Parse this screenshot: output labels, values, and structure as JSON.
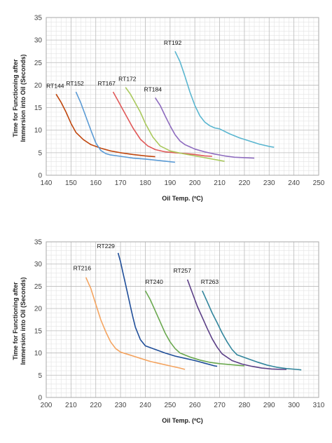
{
  "chart_data": [
    {
      "type": "line",
      "xlabel": "Oil Temp. (ºC)",
      "ylabel": "Time for Functioning after Immersion into Oil (Seconds)",
      "xlim": [
        140,
        250
      ],
      "ylim": [
        0,
        35
      ],
      "xticks": [
        "140",
        "150",
        "160",
        "170",
        "180",
        "190",
        "200",
        "210",
        "220",
        "230",
        "240",
        "250"
      ],
      "yticks": [
        "0",
        "5",
        "10",
        "15",
        "20",
        "25",
        "30",
        "35"
      ],
      "grid": true,
      "series": [
        {
          "name": "RT144",
          "color": "#c0470e",
          "x": [
            144,
            146,
            148,
            150,
            152,
            155,
            158,
            162,
            166,
            170,
            175,
            180,
            184
          ],
          "y": [
            18,
            16.2,
            14,
            11.5,
            9.5,
            7.9,
            6.8,
            6,
            5.4,
            5,
            4.6,
            4.3,
            4.1
          ]
        },
        {
          "name": "RT152",
          "color": "#5b9bd5",
          "x": [
            152,
            154,
            156,
            158,
            160,
            162,
            164,
            166,
            170,
            175,
            180,
            185,
            190,
            192
          ],
          "y": [
            18.5,
            16,
            13,
            10,
            7.2,
            5.5,
            4.8,
            4.5,
            4.2,
            3.8,
            3.6,
            3.3,
            3,
            2.9
          ]
        },
        {
          "name": "RT167",
          "color": "#e05858",
          "x": [
            167,
            169,
            171,
            173,
            175,
            178,
            181,
            184,
            188,
            192,
            196,
            200,
            204,
            207
          ],
          "y": [
            18.5,
            16.5,
            14.5,
            12.5,
            10.5,
            8,
            6.5,
            5.7,
            5.2,
            5,
            4.8,
            4.6,
            4.3,
            4.2
          ]
        },
        {
          "name": "RT172",
          "color": "#a9c95c",
          "x": [
            172,
            174,
            176,
            178,
            180,
            183,
            186,
            190,
            195,
            200,
            205,
            210,
            212
          ],
          "y": [
            19.5,
            18,
            16,
            14,
            11.5,
            8.5,
            6.5,
            5.4,
            4.8,
            4.3,
            3.8,
            3.3,
            3.1
          ]
        },
        {
          "name": "RT184",
          "color": "#8e6cbf",
          "x": [
            184,
            186,
            188,
            190,
            192,
            194,
            196,
            198,
            200,
            204,
            208,
            212,
            216,
            220,
            224
          ],
          "y": [
            17.2,
            15.5,
            13.2,
            11,
            9,
            7.6,
            6.8,
            6.3,
            5.8,
            5.2,
            4.7,
            4.3,
            4,
            3.9,
            3.8
          ]
        },
        {
          "name": "RT192",
          "color": "#5ab6d0",
          "x": [
            192,
            194,
            196,
            198,
            200,
            202,
            204,
            206,
            208,
            210,
            214,
            218,
            222,
            226,
            230,
            232
          ],
          "y": [
            27.5,
            25.2,
            22,
            18.5,
            15.5,
            13.2,
            11.8,
            11,
            10.5,
            10.3,
            9.2,
            8.3,
            7.6,
            6.9,
            6.4,
            6.2
          ]
        }
      ]
    },
    {
      "type": "line",
      "xlabel": "Oil Temp. (ºC)",
      "ylabel": "Time for Functioning after Immersion into Oil (Seconds)",
      "xlim": [
        200,
        310
      ],
      "ylim": [
        0,
        35
      ],
      "xticks": [
        "200",
        "210",
        "220",
        "230",
        "240",
        "250",
        "260",
        "270",
        "280",
        "290",
        "300",
        "310"
      ],
      "yticks": [
        "0",
        "5",
        "10",
        "15",
        "20",
        "25",
        "30",
        "35"
      ],
      "grid": true,
      "series": [
        {
          "name": "RT216",
          "color": "#f4a460",
          "x": [
            216,
            218,
            220,
            222,
            224,
            226,
            228,
            230,
            234,
            238,
            242,
            246,
            250,
            254,
            256
          ],
          "y": [
            27,
            24.5,
            21,
            17.5,
            14.8,
            12.5,
            11,
            10.2,
            9.5,
            8.8,
            8.1,
            7.6,
            7.1,
            6.6,
            6.3
          ]
        },
        {
          "name": "RT229",
          "color": "#1f4e99",
          "x": [
            229,
            230,
            231,
            232,
            233,
            234,
            235,
            236,
            238,
            240,
            244,
            248,
            252,
            256,
            260,
            264,
            268,
            269
          ],
          "y": [
            32.5,
            30.5,
            28,
            25.5,
            23,
            20.5,
            18,
            15.8,
            13,
            11.6,
            10.8,
            10,
            9.3,
            8.8,
            8.3,
            7.7,
            7.1,
            7
          ]
        },
        {
          "name": "RT240",
          "color": "#6aa84f",
          "x": [
            240,
            242,
            244,
            246,
            248,
            250,
            252,
            254,
            258,
            262,
            266,
            270,
            274,
            278,
            280
          ],
          "y": [
            24,
            22,
            19.5,
            17,
            14.5,
            12.5,
            11,
            10,
            9.1,
            8.4,
            7.9,
            7.6,
            7.4,
            7.2,
            7.1
          ]
        },
        {
          "name": "RT257",
          "color": "#5b3f86",
          "x": [
            257,
            259,
            261,
            263,
            265,
            267,
            269,
            271,
            275,
            279,
            283,
            287,
            291,
            295,
            297
          ],
          "y": [
            26.5,
            23.5,
            20.5,
            18,
            15.5,
            13.2,
            11.3,
            9.8,
            8.3,
            7.5,
            7,
            6.6,
            6.4,
            6.3,
            6.3
          ]
        },
        {
          "name": "RT263",
          "color": "#31859c",
          "x": [
            263,
            265,
            267,
            269,
            271,
            273,
            275,
            277,
            281,
            285,
            289,
            293,
            297,
            301,
            303
          ],
          "y": [
            24,
            21.5,
            19,
            16.8,
            14.5,
            12.5,
            10.8,
            9.6,
            8.8,
            8,
            7.3,
            6.8,
            6.5,
            6.3,
            6.2
          ]
        }
      ]
    }
  ]
}
